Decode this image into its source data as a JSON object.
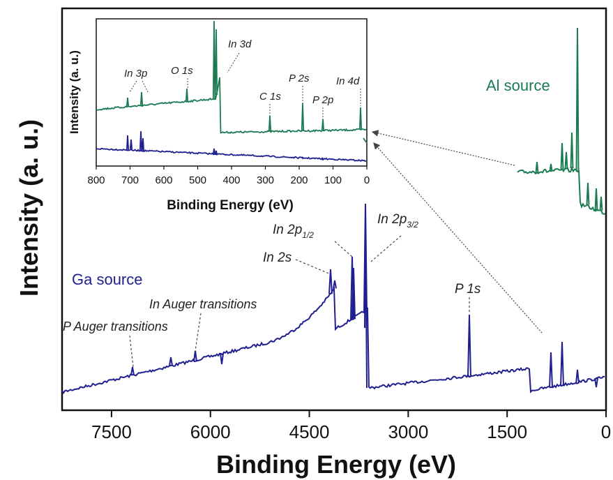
{
  "colors": {
    "ga": "#1f1f8f",
    "al": "#1a7a52",
    "axis": "#111111"
  },
  "chart_data": [
    {
      "type": "line",
      "xlabel": "Binding Energy (eV)",
      "ylabel": "Intensity (a. u.)",
      "xlim": [
        8250,
        0
      ],
      "xticks": [
        7500,
        6000,
        4500,
        3000,
        1500,
        0
      ],
      "xtick_labels": [
        "7500",
        "6000",
        "4500",
        "3000",
        "1500",
        "0"
      ],
      "series": [
        {
          "name": "Ga source",
          "peaks": [
            {
              "label": "In 2s",
              "x": 4240
            },
            {
              "label": "In 2p1/2",
              "x": 3940
            },
            {
              "label": "In 2p3/2",
              "x": 3730
            },
            {
              "label": "P 1s",
              "x": 2150
            }
          ]
        },
        {
          "name": "Al source"
        }
      ],
      "annotations": [
        {
          "text": "P Auger transitions",
          "x": 7450
        },
        {
          "text": "In Auger transitions",
          "x": 6400
        },
        {
          "main": "In 2s"
        },
        {
          "main": "In 2p",
          "sub": "1/2"
        },
        {
          "main": "In 2p",
          "sub": "3/2"
        },
        {
          "main": "P 1s"
        }
      ]
    },
    {
      "type": "line",
      "xlabel": "Binding Energy (eV)",
      "ylabel": "Intensity (a. u.)",
      "xlim": [
        800,
        0
      ],
      "xticks": [
        800,
        700,
        600,
        500,
        400,
        300,
        200,
        100,
        0
      ],
      "xtick_labels": [
        "800",
        "700",
        "600",
        "500",
        "400",
        "300",
        "200",
        "100",
        "0"
      ],
      "series": [
        {
          "name": "Al source",
          "peaks": [
            {
              "label": "In 3p",
              "x": 665
            },
            {
              "label": "O 1s",
              "x": 531
            },
            {
              "label": "In 3d",
              "x": 444
            },
            {
              "label": "C 1s",
              "x": 285
            },
            {
              "label": "P 2s",
              "x": 188
            },
            {
              "label": "P 2p",
              "x": 129
            },
            {
              "label": "In 4d",
              "x": 17
            }
          ]
        },
        {
          "name": "Ga source"
        }
      ],
      "annotations": [
        "In 3p",
        "O 1s",
        "In 3d",
        "C 1s",
        "P 2s",
        "P 2p",
        "In 4d"
      ]
    }
  ]
}
